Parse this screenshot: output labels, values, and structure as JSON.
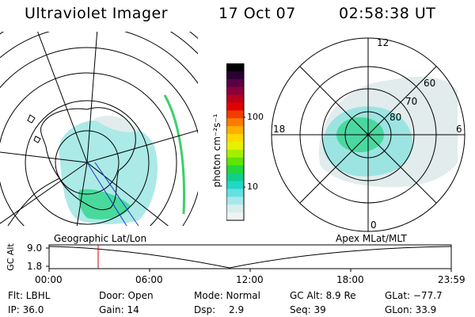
{
  "header": {
    "title": "Ultraviolet Imager",
    "date": "17 Oct 07",
    "time": "02:58:38 UT"
  },
  "geo_panel": {
    "label": "Geographic Lat/Lon"
  },
  "apex_panel": {
    "label": "Apex MLat/MLT",
    "mlt_labels": [
      "12",
      "18",
      "6",
      "0"
    ],
    "lat_labels": [
      "60",
      "70",
      "80"
    ]
  },
  "colorbar": {
    "unit_label": "photon cm⁻²s⁻¹",
    "ticks": [
      "100",
      "10"
    ],
    "colors": [
      "#000000",
      "#2b0033",
      "#5a0046",
      "#8b0038",
      "#b8001c",
      "#e00000",
      "#f23c00",
      "#ff7a00",
      "#ffb000",
      "#ffd800",
      "#e6f000",
      "#a6ee00",
      "#5fe300",
      "#23d63a",
      "#10cf8a",
      "#22d7c7",
      "#66e0e0",
      "#a8e8e8",
      "#d6eeee",
      "#eef2f2"
    ]
  },
  "altitude_plot": {
    "axis_title": "GC Alt",
    "y_ticks": [
      "9.0",
      "1.8"
    ],
    "x_ticks": [
      "00:00",
      "06:00",
      "12:00",
      "18:00",
      "23:59"
    ],
    "marker_color": "#cc0000"
  },
  "status": {
    "flt": "Flt: LBHL",
    "ip": "IP: 36.0",
    "door": "Door: Open",
    "gain": "Gain: 14",
    "mode": "Mode: Normal",
    "dsp_label": "Dsp:",
    "dsp_value": "2.9",
    "gc_alt": "GC Alt: 8.9 Re",
    "seq": "Seq: 39",
    "glat": "GLat: −77.7",
    "glon": "GLon:  33.9"
  }
}
